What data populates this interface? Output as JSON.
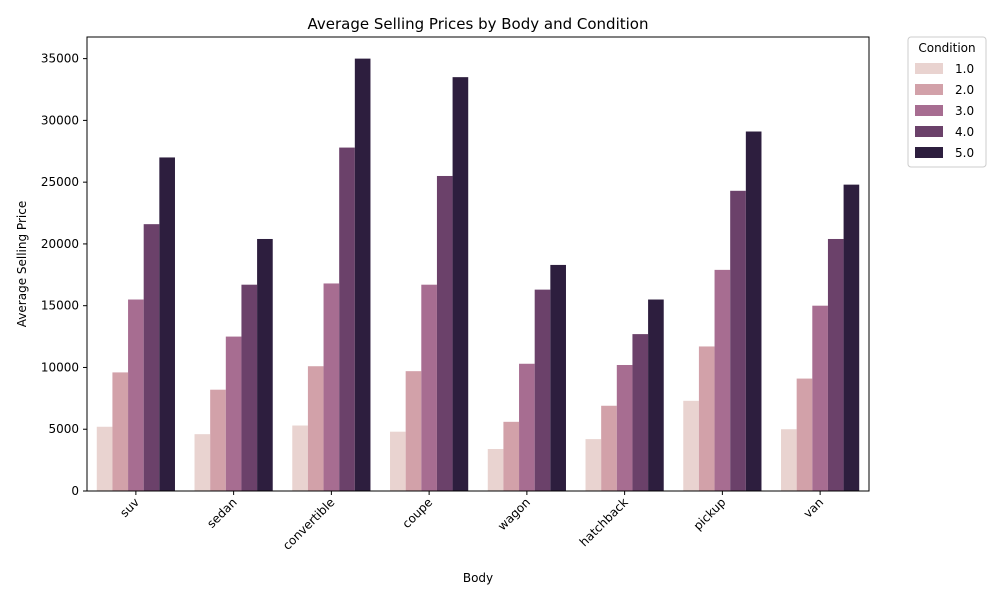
{
  "chart_data": {
    "type": "bar",
    "title": "Average Selling Prices by Body and Condition",
    "xlabel": "Body",
    "ylabel": "Average Selling Price",
    "categories": [
      "suv",
      "sedan",
      "convertible",
      "coupe",
      "wagon",
      "hatchback",
      "pickup",
      "van"
    ],
    "ylim": [
      0,
      36750
    ],
    "yticks": [
      0,
      5000,
      10000,
      15000,
      20000,
      25000,
      30000,
      35000
    ],
    "grid": false,
    "legend": {
      "title": "Condition",
      "placement": "outside-top-right"
    },
    "series": [
      {
        "name": "1.0",
        "color": "#e9d3d0",
        "values": [
          5200,
          4600,
          5300,
          4800,
          3400,
          4200,
          7300,
          5000
        ]
      },
      {
        "name": "2.0",
        "color": "#d2a1a9",
        "values": [
          9600,
          8200,
          10100,
          9700,
          5600,
          6900,
          11700,
          9100
        ]
      },
      {
        "name": "3.0",
        "color": "#a76d91",
        "values": [
          15500,
          12500,
          16800,
          16700,
          10300,
          10200,
          17900,
          15000
        ]
      },
      {
        "name": "4.0",
        "color": "#6b416a",
        "values": [
          21600,
          16700,
          27800,
          25500,
          16300,
          12700,
          24300,
          20400
        ]
      },
      {
        "name": "5.0",
        "color": "#2d1e3e",
        "values": [
          27000,
          20400,
          35000,
          33500,
          18300,
          15500,
          29100,
          24800
        ]
      }
    ]
  }
}
